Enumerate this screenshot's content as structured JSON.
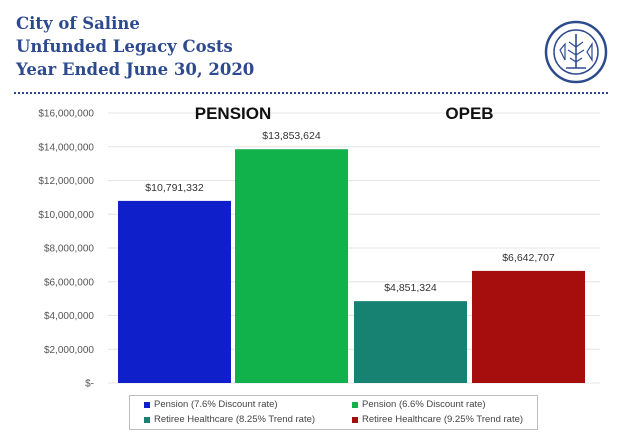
{
  "header": {
    "line1": "City of Saline",
    "line2": "Unfunded Legacy Costs",
    "line3": "Year Ended June 30, 2020"
  },
  "seal": {
    "icon": "city-seal-icon",
    "color": "#2e4a8f"
  },
  "colors": {
    "header_text": "#2e4a8f",
    "pension_76": "#0f1fc9",
    "pension_66": "#11b24b",
    "retiree_825": "#178271",
    "retiree_925": "#a60d0d"
  },
  "chart_data": {
    "type": "bar",
    "groups": [
      "PENSION",
      "OPEB"
    ],
    "series": [
      {
        "name": "Pension (7.6% Discount rate)",
        "group": "PENSION",
        "value": 10791332,
        "label": "$10,791,332",
        "color": "#0f1fc9"
      },
      {
        "name": "Pension (6.6% Discount rate)",
        "group": "PENSION",
        "value": 13853624,
        "label": "$13,853,624",
        "color": "#11b24b"
      },
      {
        "name": "Retiree Healthcare (8.25% Trend rate)",
        "group": "OPEB",
        "value": 4851324,
        "label": "$4,851,324",
        "color": "#178271"
      },
      {
        "name": "Retiree Healthcare (9.25% Trend rate)",
        "group": "OPEB",
        "value": 6642707,
        "label": "$6,642,707",
        "color": "#a60d0d"
      }
    ],
    "ylim": [
      0,
      16000000
    ],
    "yticks": [
      {
        "value": 0,
        "label": "$-"
      },
      {
        "value": 2000000,
        "label": "$2,000,000"
      },
      {
        "value": 4000000,
        "label": "$4,000,000"
      },
      {
        "value": 6000000,
        "label": "$6,000,000"
      },
      {
        "value": 8000000,
        "label": "$8,000,000"
      },
      {
        "value": 10000000,
        "label": "$10,000,000"
      },
      {
        "value": 12000000,
        "label": "$12,000,000"
      },
      {
        "value": 14000000,
        "label": "$14,000,000"
      },
      {
        "value": 16000000,
        "label": "$16,000,000"
      }
    ],
    "grid": true,
    "legend_position": "bottom"
  }
}
